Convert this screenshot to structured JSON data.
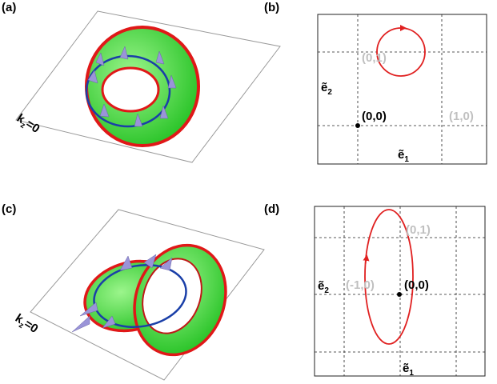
{
  "panels": [
    {
      "label": "(a)",
      "plane_label": {
        "base": "k",
        "sub": "z",
        "rest": "=0"
      }
    },
    {
      "label": "(b)",
      "axis1": {
        "base": "ẽ",
        "sub": "1"
      },
      "axis2": {
        "base": "ẽ",
        "sub": "2"
      },
      "points": [
        "(0,1)",
        "(0,0)",
        "(1,0)"
      ]
    },
    {
      "label": "(c)",
      "plane_label": {
        "base": "k",
        "sub": "z",
        "rest": "=0"
      }
    },
    {
      "label": "(d)",
      "axis1": {
        "base": "ẽ",
        "sub": "1"
      },
      "axis2": {
        "base": "ẽ",
        "sub": "2"
      },
      "points": [
        "(0,1)",
        "(-1,0)",
        "(0,0)"
      ]
    }
  ]
}
